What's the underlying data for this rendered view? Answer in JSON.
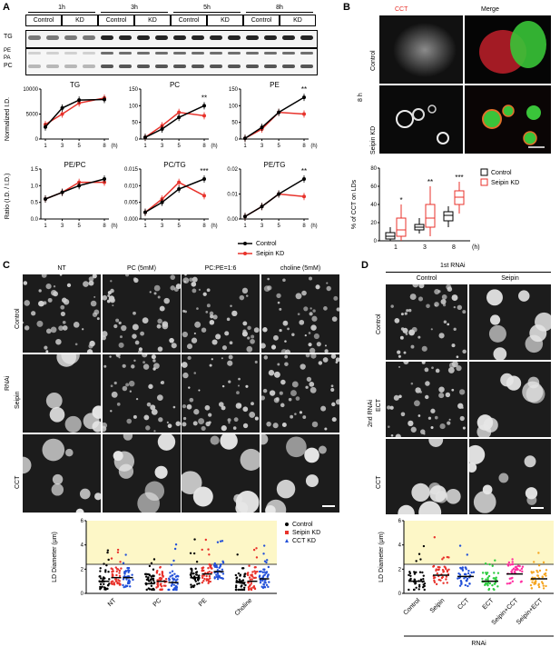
{
  "panelA": {
    "letter": "A",
    "timepoints": [
      "1h",
      "3h",
      "5h",
      "8h"
    ],
    "group_labels": [
      "Control",
      "KD"
    ],
    "blot_rows": [
      "TG",
      "PE",
      "PA",
      "PC"
    ],
    "charts": [
      {
        "title": "TG",
        "x": [
          1,
          3,
          5,
          8
        ],
        "control": [
          2400,
          6200,
          7800,
          7900
        ],
        "kd": [
          2900,
          5000,
          7200,
          8200
        ],
        "ylim": [
          0,
          10000
        ],
        "yticks": [
          "0",
          "5000",
          "10000"
        ],
        "sig": ""
      },
      {
        "title": "PC",
        "x": [
          1,
          3,
          5,
          8
        ],
        "control": [
          5,
          30,
          65,
          100
        ],
        "kd": [
          5,
          40,
          80,
          70
        ],
        "ylim": [
          0,
          150
        ],
        "yticks": [
          "0",
          "50",
          "100",
          "150"
        ],
        "sig": "**"
      },
      {
        "title": "PE",
        "x": [
          1,
          3,
          5,
          8
        ],
        "control": [
          2,
          35,
          80,
          125
        ],
        "kd": [
          2,
          30,
          80,
          75
        ],
        "ylim": [
          0,
          150
        ],
        "yticks": [
          "0",
          "50",
          "100",
          "150"
        ],
        "sig": "**"
      },
      {
        "title": "PE/PC",
        "x": [
          1,
          3,
          5,
          8
        ],
        "control": [
          0.6,
          0.8,
          1.0,
          1.2
        ],
        "kd": [
          0.6,
          0.8,
          1.1,
          1.1
        ],
        "ylim": [
          0,
          1.5
        ],
        "yticks": [
          "0.0",
          "0.5",
          "1.0",
          "1.5"
        ],
        "sig": ""
      },
      {
        "title": "PC/TG",
        "x": [
          1,
          3,
          5,
          8
        ],
        "control": [
          0.002,
          0.005,
          0.009,
          0.012
        ],
        "kd": [
          0.002,
          0.006,
          0.011,
          0.007
        ],
        "ylim": [
          0,
          0.015
        ],
        "yticks": [
          "0.000",
          "0.005",
          "0.010",
          "0.015"
        ],
        "sig": "***"
      },
      {
        "title": "PE/TG",
        "x": [
          1,
          3,
          5,
          8
        ],
        "control": [
          0.001,
          0.005,
          0.01,
          0.016
        ],
        "kd": [
          0.001,
          0.005,
          0.01,
          0.009
        ],
        "ylim": [
          0,
          0.02
        ],
        "yticks": [
          "0.00",
          "0.01",
          "0.02"
        ],
        "sig": "**"
      }
    ],
    "ylabel_top": "Normalized I.D.",
    "ylabel_bottom": "Ratio (I.D. / I.D.)",
    "x_unit": "(h)",
    "legend": [
      "Control",
      "Seipin KD"
    ]
  },
  "panelB": {
    "letter": "B",
    "col_labels": [
      "CCT",
      "Merge"
    ],
    "row_labels": [
      "Control",
      "Seipin KD"
    ],
    "time_label": "8 h",
    "box": {
      "ylabel": "% of CCT on LDs",
      "yticks": [
        "0",
        "20",
        "40",
        "60",
        "80"
      ],
      "x": [
        "1",
        "3",
        "8"
      ],
      "x_unit": "(h)",
      "sig": [
        "*",
        "**",
        "***"
      ],
      "legend": [
        "Control",
        "Seipin KD"
      ],
      "control": [
        [
          0,
          2,
          5,
          9,
          15
        ],
        [
          8,
          12,
          15,
          18,
          25
        ],
        [
          15,
          22,
          28,
          32,
          38
        ]
      ],
      "kd": [
        [
          0,
          5,
          12,
          25,
          40
        ],
        [
          5,
          15,
          25,
          40,
          60
        ],
        [
          30,
          40,
          48,
          55,
          65
        ]
      ]
    }
  },
  "panelC": {
    "letter": "C",
    "col_labels": [
      "NT",
      "PC (5mM)",
      "PC:PE=1:6",
      "choline (5mM)"
    ],
    "row_labels": [
      "Control",
      "Seipin",
      "CCT"
    ],
    "side_label": "RNAi",
    "scatter": {
      "ylabel": "LD Diameter (μm)",
      "yticks": [
        "0",
        "2",
        "4",
        "6"
      ],
      "categories": [
        "NT",
        "PC",
        "PE",
        "Choline"
      ],
      "legend": [
        "Control",
        "Seipin KD",
        "CCT KD"
      ],
      "means": [
        [
          1.0,
          1.3,
          1.3
        ],
        [
          0.8,
          1.0,
          0.9
        ],
        [
          1.3,
          1.6,
          1.8
        ],
        [
          0.9,
          1.0,
          1.2
        ]
      ]
    }
  },
  "panelD": {
    "letter": "D",
    "top_label": "1st RNAi",
    "col_labels": [
      "Control",
      "Seipin"
    ],
    "row_labels": [
      "Control",
      "ECT",
      "CCT"
    ],
    "side_label": "2nd RNAi",
    "scatter": {
      "ylabel": "LD Diameter (μm)",
      "yticks": [
        "0",
        "2",
        "4",
        "6"
      ],
      "categories": [
        "Control",
        "Seipin",
        "CCT",
        "ECT",
        "Seipin+CCT",
        "Seipin+ECT"
      ],
      "xlabel": "RNAi",
      "means": [
        1.0,
        1.5,
        1.4,
        1.0,
        1.6,
        1.2
      ]
    }
  },
  "colors": {
    "control": "#000000",
    "kd": "#e8322b",
    "cct": "#2350d8",
    "green": "#2ecc40",
    "ect": "#2ecc40",
    "pink": "#ff2fa0",
    "orange": "#f5a623",
    "highlight": "#fdf7c7"
  }
}
